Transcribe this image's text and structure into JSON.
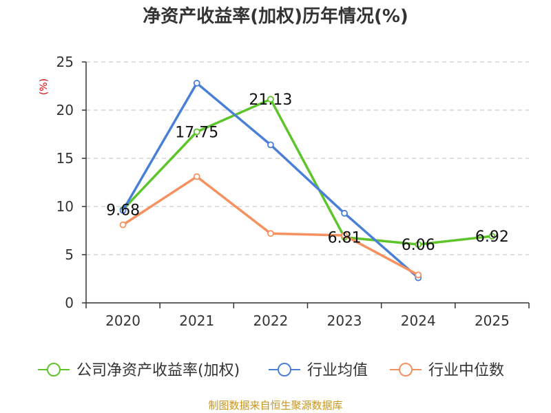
{
  "chart_data": {
    "type": "line",
    "title": "净资产收益率(加权)历年情况(%)",
    "ylabel": "(%)",
    "xlabel": "",
    "categories": [
      "2020",
      "2021",
      "2022",
      "2023",
      "2024",
      "2025"
    ],
    "ylim": [
      0,
      25
    ],
    "yticks": [
      0,
      5,
      10,
      15,
      20,
      25
    ],
    "grid": true,
    "legend_position": "bottom",
    "series": [
      {
        "name": "公司净资产收益率(加权)",
        "color": "#5ec42b",
        "values": [
          9.68,
          17.75,
          21.13,
          6.81,
          6.06,
          6.92
        ],
        "labels": [
          "9.68",
          "17.75",
          "21.13",
          "6.81",
          "6.06",
          "6.92"
        ]
      },
      {
        "name": "行业均值",
        "color": "#4a7fd8",
        "values": [
          9.6,
          22.8,
          16.4,
          9.3,
          2.6,
          null
        ]
      },
      {
        "name": "行业中位数",
        "color": "#f6905e",
        "values": [
          8.1,
          13.1,
          7.2,
          7.0,
          2.9,
          null
        ]
      }
    ],
    "source": "制图数据来自恒生聚源数据库"
  }
}
